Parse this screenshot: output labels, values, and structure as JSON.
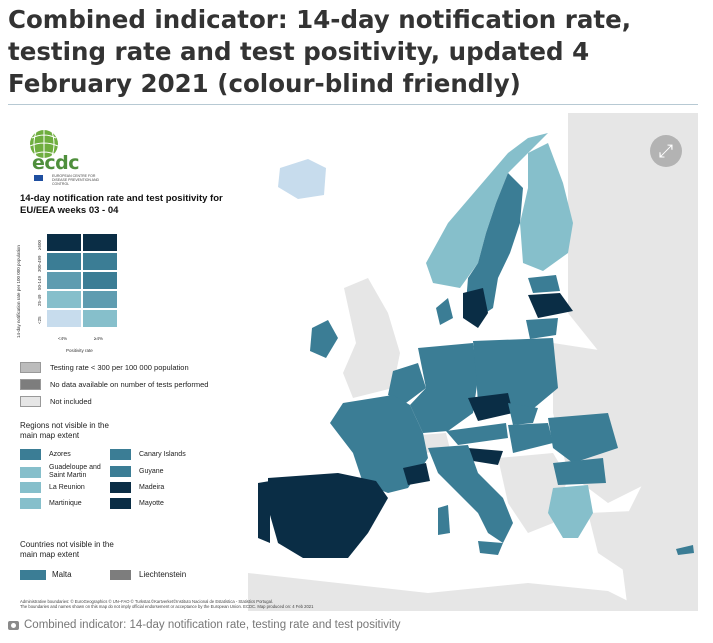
{
  "header": {
    "title": "Combined indicator: 14-day notification rate, testing rate and test positivity, updated 4 February 2021 (colour-blind friendly)"
  },
  "colors": {
    "ocean": "#ffffff",
    "non_eu_land": "#e6e6e6",
    "very_dark": "#0a2d45",
    "dark_teal": "#3b7d95",
    "mid_teal": "#5f9cb0",
    "light_teal": "#86bfcb",
    "pale_blue": "#c7dced",
    "grey_testing": "#bcbcbc",
    "dark_grey_nodata": "#7d7d7d",
    "light_grey_notincluded": "#e6e6e6"
  },
  "logo": {
    "text": "ecdc",
    "subtext": "EUROPEAN CENTRE FOR DISEASE PREVENTION AND CONTROL"
  },
  "legend": {
    "title": "14-day notification rate and test positivity for EU/EEA weeks 03 - 04",
    "rows": [
      "≥500",
      "300-499",
      "50-149",
      "25-49",
      "<25"
    ],
    "cols": [
      "<4%",
      "≥4%"
    ],
    "y_axis_label": "14-day notification rate per 100 000 population",
    "x_axis_label": "Positivity rate",
    "items": [
      {
        "label": "Testing rate < 300 per 100 000 population",
        "color": "#bcbcbc"
      },
      {
        "label": "No data available on number of tests performed",
        "color": "#7d7d7d"
      },
      {
        "label": "Not included",
        "color": "#e6e6e6"
      }
    ]
  },
  "regions": {
    "heading": "Regions not visible in the main map extent",
    "items": [
      {
        "label": "Azores",
        "color": "#3b7d95"
      },
      {
        "label": "Canary Islands",
        "color": "#3b7d95"
      },
      {
        "label": "Guadeloupe and Saint Martin",
        "color": "#86bfcb"
      },
      {
        "label": "Guyane",
        "color": "#3b7d95"
      },
      {
        "label": "La Reunion",
        "color": "#86bfcb"
      },
      {
        "label": "Madeira",
        "color": "#0a2d45"
      },
      {
        "label": "Martinique",
        "color": "#86bfcb"
      },
      {
        "label": "Mayotte",
        "color": "#0a2d45"
      }
    ]
  },
  "countries": {
    "heading": "Countries not visible in the main map extent",
    "items": [
      {
        "label": "Malta",
        "color": "#3b7d95"
      },
      {
        "label": "Liechtenstein",
        "color": "#7d7d7d"
      }
    ]
  },
  "footer": {
    "line1": "Administrative boundaries: © EuroGeographics © UN–FAO © Turkstat.©Kartverket©Instituto Nacional de Estatística - Statistics Portugal.",
    "line2": "The boundaries and names shown on this map do not imply official endorsement or acceptance by the European Union. ECDC. Map produced on: 4 Feb 2021"
  },
  "caption": "Combined indicator: 14-day notification rate, testing rate and test positivity"
}
